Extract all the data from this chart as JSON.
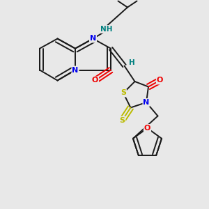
{
  "bg_color": "#e8e8e8",
  "bond_color": "#1a1a1a",
  "bond_width": 1.4,
  "double_sep": 0.09,
  "atom_colors": {
    "N": "#0000ee",
    "O": "#ee0000",
    "S": "#bbbb00",
    "C": "#1a1a1a",
    "H": "#008080",
    "NH": "#008080"
  },
  "fontsize": 7.5
}
